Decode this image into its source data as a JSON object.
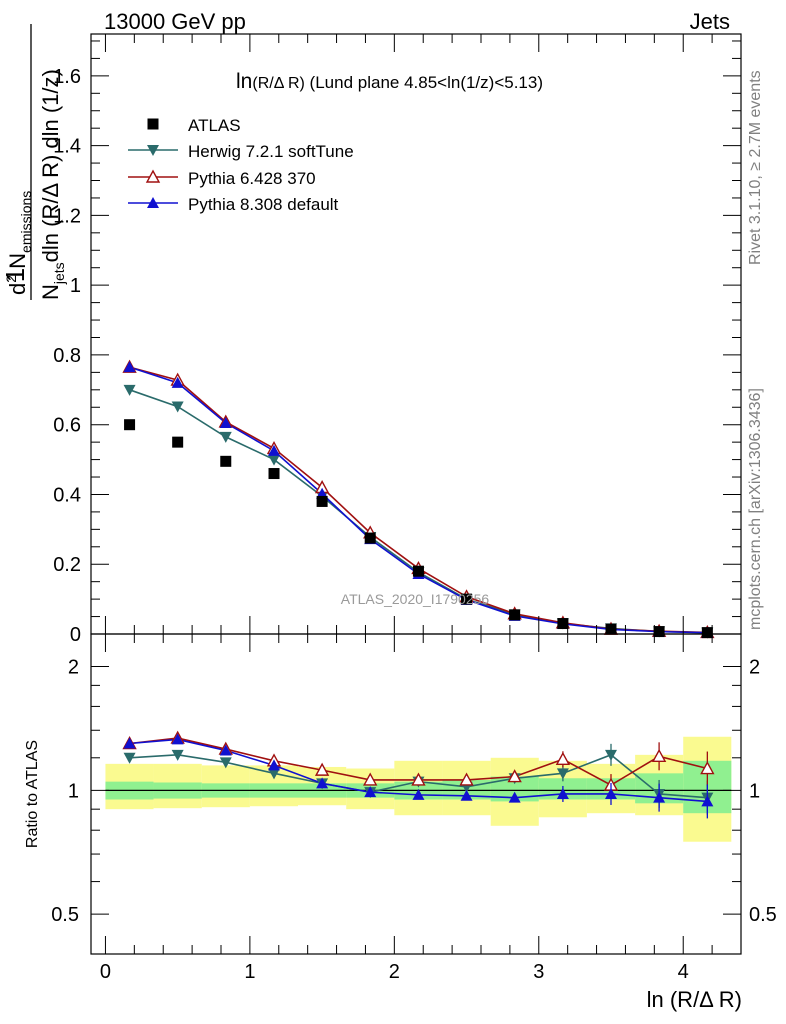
{
  "header": {
    "left": "13000 GeV pp",
    "right": "Jets"
  },
  "side_labels": {
    "rivet": "Rivet 3.1.10, ≥ 2.7M events",
    "mcplots": "mcplots.cern.ch [arXiv:1306.3436]"
  },
  "watermark": "ATLAS_2020_I1790256",
  "main_panel": {
    "title_prefix": "ln",
    "title_small": "(R/Δ R)",
    "title_rest": " (Lund plane 4.85<ln(1/z)<5.13)",
    "ylabel_num_one": "1",
    "ylabel_njets": "N",
    "ylabel_jets_sub": "jets",
    "ylabel_den": "dln (R/Δ R) dln (1/z)",
    "ylabel_d2": "d",
    "ylabel_sup2": "2",
    "ylabel_nem": " N",
    "ylabel_em_sub": "emissions",
    "yticks": [
      "0",
      "0.2",
      "0.4",
      "0.6",
      "0.8",
      "1",
      "1.2",
      "1.4",
      "1.6"
    ]
  },
  "ratio_panel": {
    "ylabel": "Ratio to ATLAS",
    "yticks_left": [
      "0.5",
      "1",
      "2"
    ],
    "yticks_right": [
      "0.5",
      "1",
      "2"
    ]
  },
  "xaxis": {
    "label": "ln (R/Δ R)",
    "ticks": [
      "0",
      "1",
      "2",
      "3",
      "4"
    ]
  },
  "colors": {
    "atlas": "#000000",
    "herwig": "#2a6b6b",
    "pythia6": "#a01010",
    "pythia8": "#1010d0",
    "band_stat": "#90f090",
    "band_total": "#fafa90"
  },
  "chart_data": {
    "type": "scatter",
    "x": [
      0.167,
      0.5,
      0.833,
      1.167,
      1.5,
      1.833,
      2.167,
      2.5,
      2.833,
      3.167,
      3.5,
      3.833,
      4.167
    ],
    "xlim": [
      -0.1,
      4.4
    ],
    "main": {
      "ylim": [
        0,
        1.72
      ],
      "series": [
        {
          "name": "ATLAS",
          "marker": "square",
          "values": [
            0.6,
            0.55,
            0.495,
            0.46,
            0.38,
            0.275,
            0.18,
            0.1,
            0.055,
            0.03,
            0.014,
            0.007,
            0.004
          ]
        },
        {
          "name": "Herwig 7.2.1 softTune",
          "marker": "triangle-down",
          "values": [
            0.7,
            0.652,
            0.565,
            0.5,
            0.395,
            0.278,
            0.177,
            0.1,
            0.056,
            0.03,
            0.016,
            0.007,
            0.004
          ]
        },
        {
          "name": "Pythia 6.428 370",
          "marker": "triangle-up-open",
          "values": [
            0.765,
            0.728,
            0.608,
            0.532,
            0.42,
            0.29,
            0.188,
            0.107,
            0.058,
            0.032,
            0.014,
            0.008,
            0.0045
          ]
        },
        {
          "name": "Pythia 8.308 default",
          "marker": "triangle-up",
          "values": [
            0.765,
            0.72,
            0.605,
            0.525,
            0.402,
            0.272,
            0.172,
            0.098,
            0.052,
            0.029,
            0.013,
            0.0068,
            0.0038
          ]
        }
      ]
    },
    "ratio": {
      "ylim": [
        0.4,
        2.4
      ],
      "log_scale": true,
      "bands": {
        "x_edges": [
          0,
          0.333,
          0.667,
          1.0,
          1.333,
          1.667,
          2.0,
          2.333,
          2.667,
          3.0,
          3.333,
          3.667,
          4.0,
          4.333
        ],
        "stat_low": [
          0.95,
          0.955,
          0.96,
          0.96,
          0.96,
          0.96,
          0.95,
          0.95,
          0.94,
          0.95,
          0.95,
          0.93,
          0.88
        ],
        "stat_high": [
          1.05,
          1.045,
          1.04,
          1.04,
          1.04,
          1.04,
          1.05,
          1.06,
          1.08,
          1.07,
          1.07,
          1.1,
          1.18
        ],
        "total_low": [
          0.9,
          0.905,
          0.91,
          0.915,
          0.92,
          0.9,
          0.87,
          0.87,
          0.82,
          0.86,
          0.88,
          0.87,
          0.75
        ],
        "total_high": [
          1.16,
          1.16,
          1.15,
          1.15,
          1.14,
          1.13,
          1.18,
          1.18,
          1.2,
          1.18,
          1.16,
          1.22,
          1.35
        ]
      },
      "series": [
        {
          "name": "Herwig 7.2.1 softTune",
          "values": [
            1.2,
            1.22,
            1.17,
            1.1,
            1.04,
            0.99,
            1.05,
            1.02,
            1.07,
            1.1,
            1.22,
            0.98,
            0.96
          ]
        },
        {
          "name": "Pythia 6.428 370",
          "values": [
            1.3,
            1.34,
            1.26,
            1.18,
            1.12,
            1.06,
            1.06,
            1.06,
            1.08,
            1.19,
            1.03,
            1.21,
            1.13
          ]
        },
        {
          "name": "Pythia 8.308 default",
          "values": [
            1.3,
            1.33,
            1.25,
            1.15,
            1.04,
            0.99,
            0.975,
            0.97,
            0.96,
            0.98,
            0.98,
            0.96,
            0.94
          ]
        }
      ]
    }
  }
}
